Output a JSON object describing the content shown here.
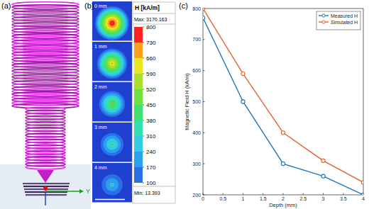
{
  "panel_a": {
    "label": "(a)",
    "axis_label": "Y"
  },
  "panel_b": {
    "label": "(b)",
    "images": [
      {
        "depth_label": "0 mm",
        "peak": 800
      },
      {
        "depth_label": "1 mm",
        "peak": 640
      },
      {
        "depth_label": "2 mm",
        "peak": 470
      },
      {
        "depth_label": "3 mm",
        "peak": 340
      },
      {
        "depth_label": "4 mm",
        "peak": 260
      }
    ],
    "colorbar": {
      "title": "H [kA/m]",
      "max_label": "Max: 3170.163",
      "min_label": "Min: 13.393",
      "ticks": [
        100,
        170,
        240,
        310,
        380,
        450,
        520,
        590,
        660,
        730,
        800
      ],
      "colors": [
        "#2b6fe8",
        "#2aa0f0",
        "#33cce0",
        "#33e0b0",
        "#40e070",
        "#70e040",
        "#a8e030",
        "#e8e820",
        "#ffa020",
        "#ff2020"
      ],
      "below_color": "#1f3fcf"
    }
  },
  "panel_c": {
    "label": "(c)"
  },
  "chart_data": {
    "type": "line",
    "x_label": "Depth (mm)",
    "y_label": "Magnetic Field H (kA/m)",
    "x": [
      0,
      1,
      2,
      3,
      4
    ],
    "series": [
      {
        "name": "Measured H",
        "color": "#1f77b4",
        "marker": "circle",
        "line_style": "solid",
        "values": [
          770,
          500,
          300,
          260,
          200
        ]
      },
      {
        "name": "Simulated H",
        "color": "#e0622a",
        "marker": "circle",
        "line_style": "solid",
        "values": [
          800,
          590,
          400,
          310,
          240
        ]
      }
    ],
    "xlim": [
      0,
      4
    ],
    "xticks": [
      0,
      0.5,
      1,
      1.5,
      2,
      2.5,
      3,
      3.5,
      4
    ],
    "ylim": [
      200,
      800
    ],
    "yticks": [
      200,
      300,
      400,
      500,
      600,
      700,
      800
    ],
    "grid": false,
    "legend": "northeast"
  }
}
